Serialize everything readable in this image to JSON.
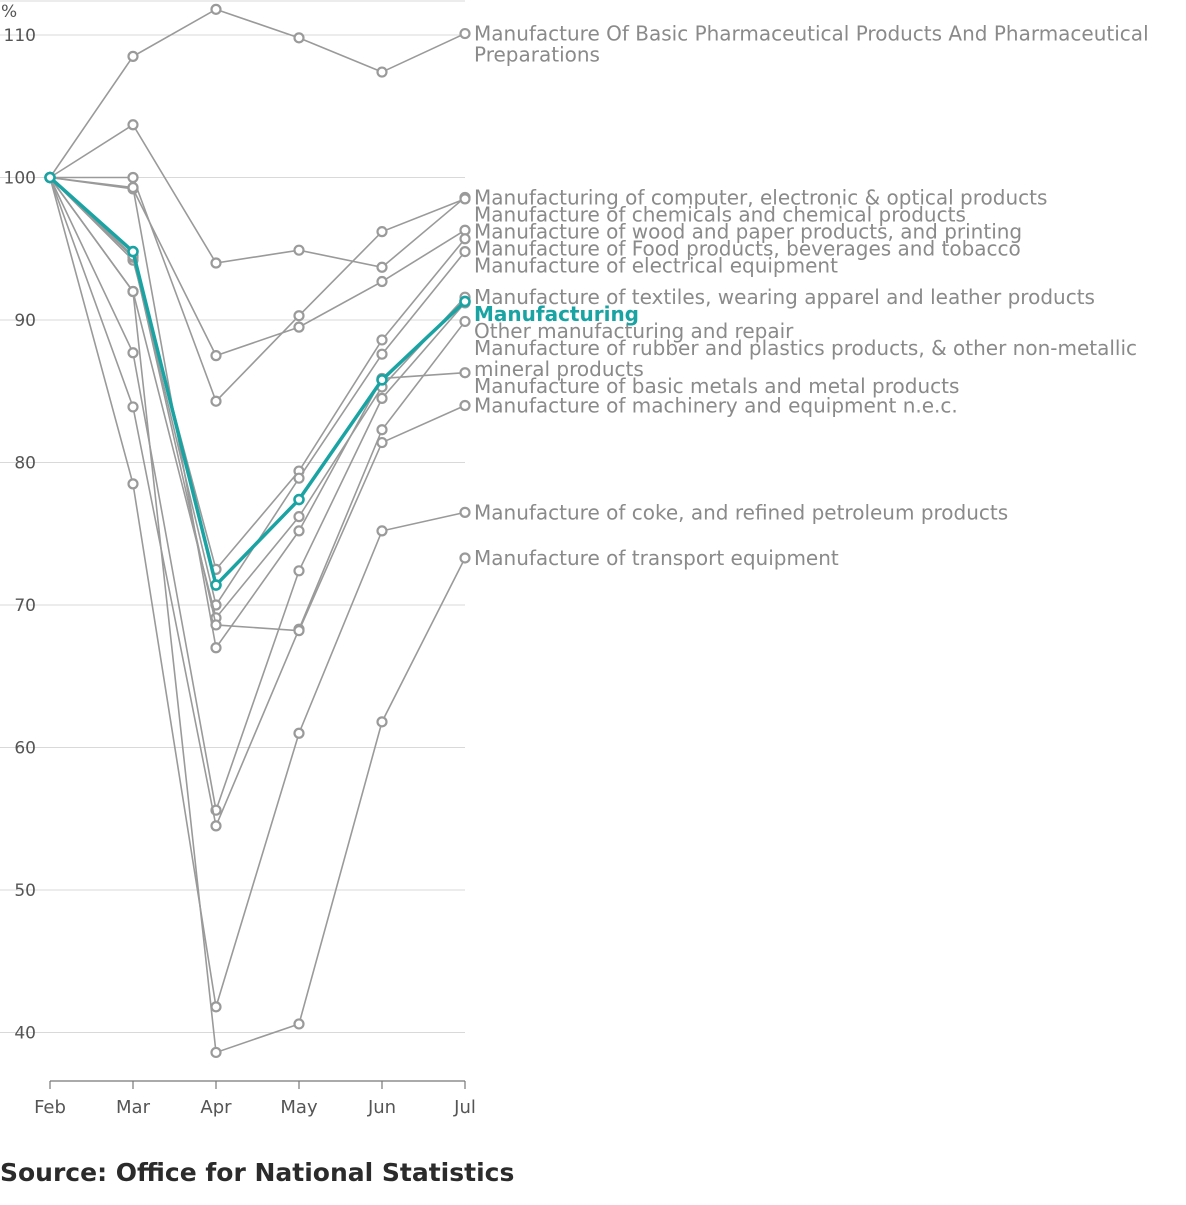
{
  "chart_data": {
    "type": "line",
    "title": "",
    "ylabel": "%",
    "xlabel": "",
    "ylim": [
      36.5,
      112.5
    ],
    "yticks": [
      40,
      50,
      60,
      70,
      80,
      90,
      100,
      110
    ],
    "categories": [
      "Feb",
      "Mar",
      "Apr",
      "May",
      "Jun",
      "Jul"
    ],
    "highlight": "Manufacturing",
    "series": [
      {
        "name": "Manufacture Of Basic Pharmaceutical Products And Pharmaceutical Preparations",
        "label_lines": [
          "Manufacture Of Basic Pharmaceutical Products And Pharmaceutical",
          "Preparations"
        ],
        "values": [
          100,
          108.5,
          111.8,
          109.8,
          107.4,
          110.1
        ]
      },
      {
        "name": "Manufacturing of computer, electronic & optical products",
        "label_lines": [
          "Manufacturing of computer, electronic & optical products"
        ],
        "values": [
          100,
          103.7,
          94.0,
          94.9,
          93.7,
          98.6
        ]
      },
      {
        "name": "Manufacture of chemicals and chemical products",
        "label_lines": [
          "Manufacture of chemicals and chemical products"
        ],
        "values": [
          100,
          100.0,
          84.3,
          90.3,
          96.2,
          98.5
        ]
      },
      {
        "name": "Manufacture of wood and paper products, and printing",
        "label_lines": [
          "Manufacture of wood and paper products, and printing"
        ],
        "values": [
          100,
          99.2,
          87.5,
          89.5,
          92.7,
          96.3
        ]
      },
      {
        "name": "Manufacture of Food products, beverages and tobacco",
        "label_lines": [
          "Manufacture of Food products, beverages and tobacco"
        ],
        "values": [
          100,
          94.2,
          72.5,
          79.4,
          88.6,
          95.7
        ]
      },
      {
        "name": "Manufacture of electrical equipment",
        "label_lines": [
          "Manufacture of electrical equipment"
        ],
        "values": [
          100,
          94.4,
          70.0,
          78.9,
          87.6,
          94.8
        ]
      },
      {
        "name": "Manufacture of textiles, wearing apparel and leather products",
        "label_lines": [
          "Manufacture of textiles, wearing apparel and leather products"
        ],
        "values": [
          100,
          92.0,
          69.1,
          76.2,
          85.3,
          91.6
        ]
      },
      {
        "name": "Other manufacturing and repair",
        "label_lines": [
          "Other manufacturing and repair"
        ],
        "values": [
          100,
          87.7,
          55.6,
          72.4,
          84.5,
          91.2
        ]
      },
      {
        "name": "Manufacture of rubber and plastics products, & other non-metallic mineral products",
        "label_lines": [
          "Manufacture of rubber and plastics products, & other non-metallic",
          "mineral products"
        ],
        "values": [
          100,
          83.9,
          54.5,
          68.3,
          82.3,
          89.9
        ]
      },
      {
        "name": "Manufacture of basic metals and metal products",
        "label_lines": [
          "Manufacture of basic metals and metal products"
        ],
        "values": [
          100,
          99.3,
          67.0,
          75.2,
          85.9,
          86.3
        ]
      },
      {
        "name": "Manufacture of machinery and equipment n.e.c.",
        "label_lines": [
          "Manufacture of machinery and equipment n.e.c."
        ],
        "values": [
          100,
          94.5,
          68.6,
          68.2,
          81.4,
          84.0
        ]
      },
      {
        "name": "Manufacture of coke, and refined petroleum products",
        "label_lines": [
          "Manufacture of coke, and refined petroleum products"
        ],
        "values": [
          100,
          78.5,
          41.8,
          61.0,
          75.2,
          76.5
        ]
      },
      {
        "name": "Manufacture of transport equipment",
        "label_lines": [
          "Manufacture of transport equipment"
        ],
        "values": [
          100,
          92.0,
          38.6,
          40.6,
          61.8,
          73.3
        ]
      },
      {
        "name": "Manufacturing",
        "label_lines": [
          "Manufacturing"
        ],
        "values": [
          100,
          94.8,
          71.4,
          77.4,
          85.8,
          91.3
        ]
      }
    ]
  },
  "source": "Source: Office for National Statistics"
}
